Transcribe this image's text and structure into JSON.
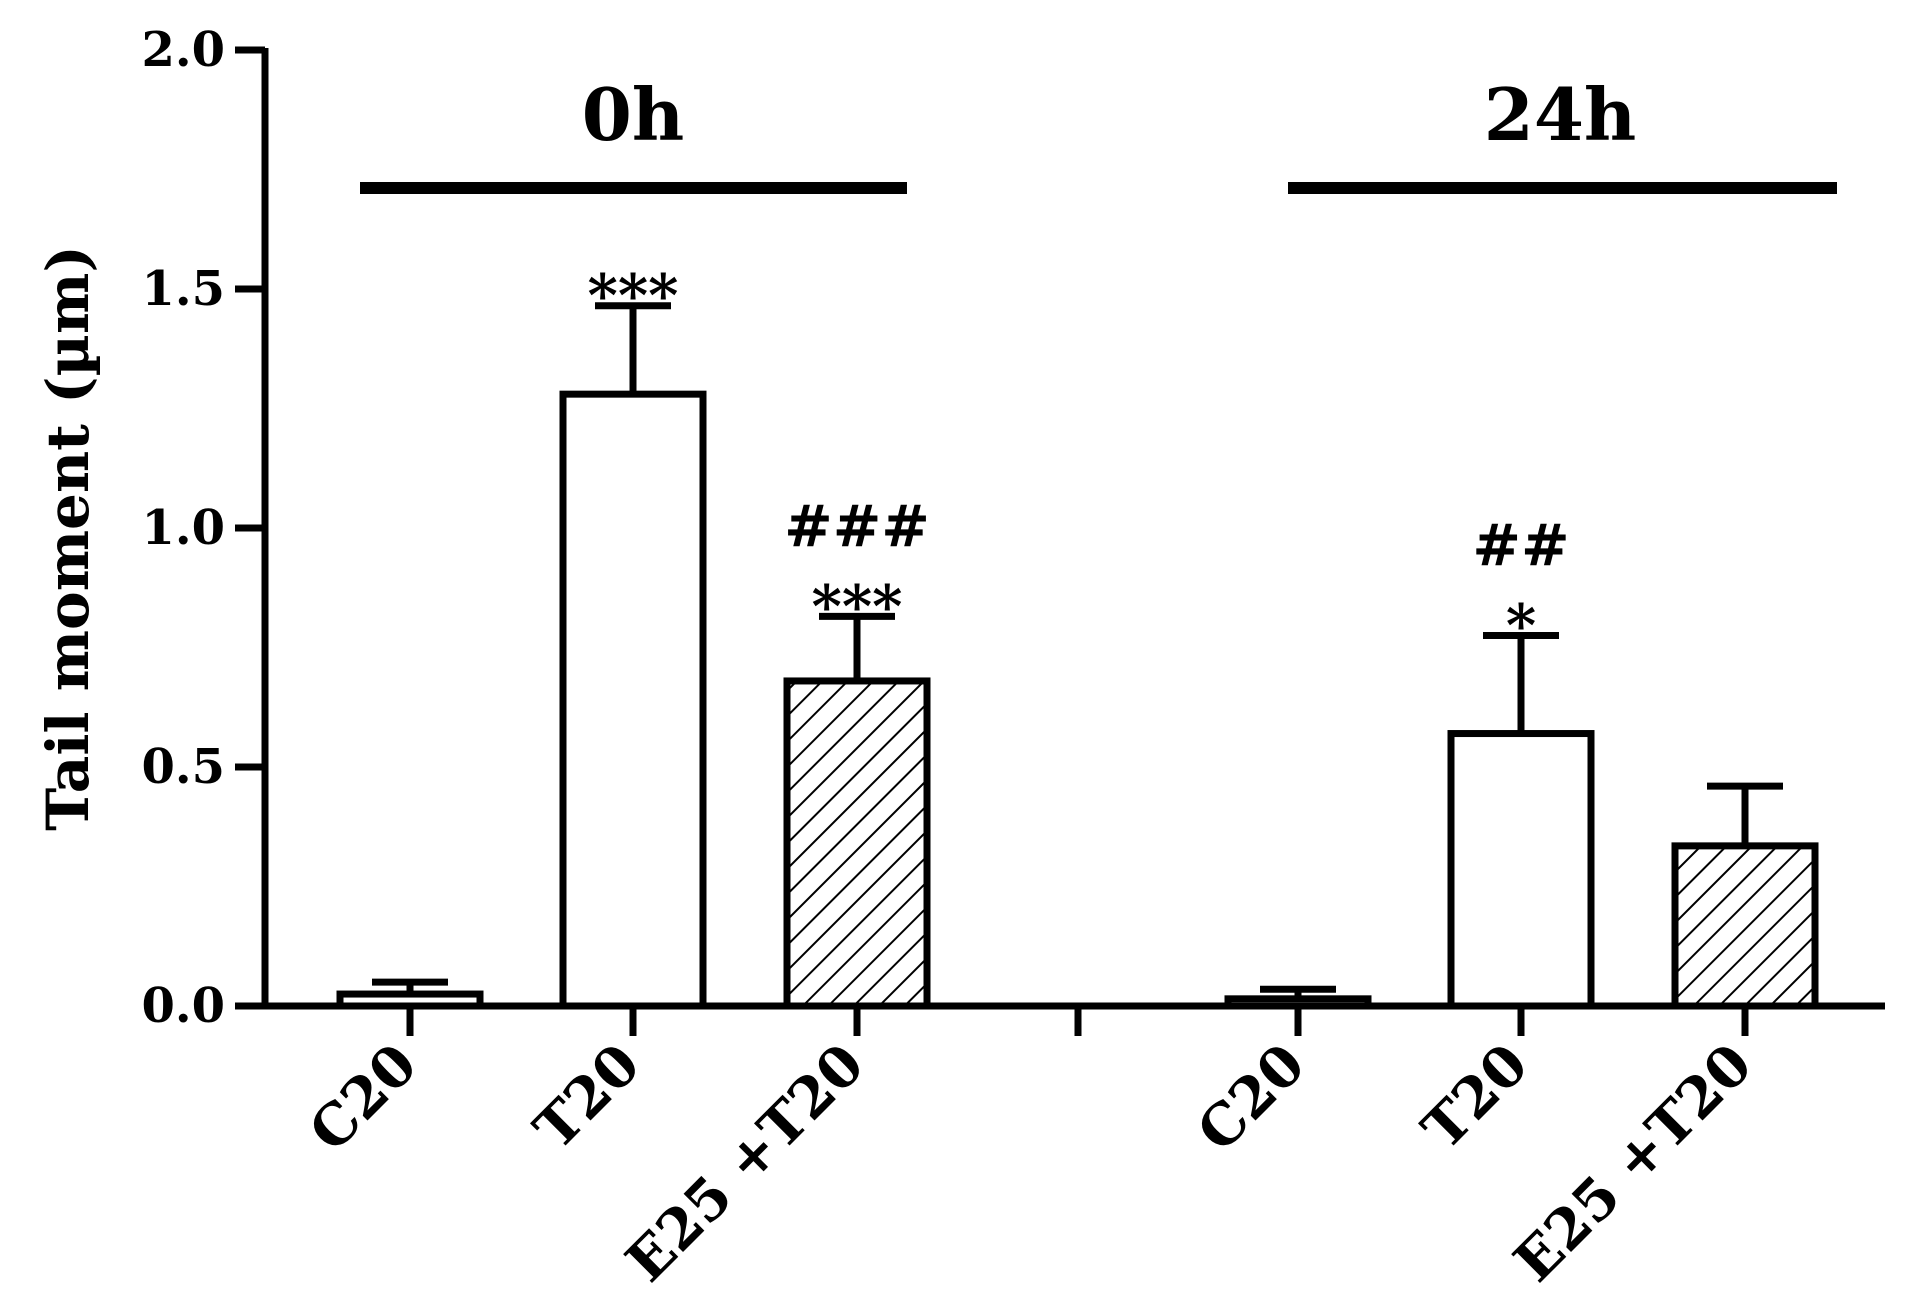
{
  "chart_data": {
    "type": "bar",
    "ylabel": "Tail moment (µm)",
    "xlabel": "",
    "ylim": [
      0,
      2.0
    ],
    "yticks": [
      0,
      0.5,
      1.0,
      1.5,
      2.0
    ],
    "ytick_labels": [
      "0.0",
      "0.5",
      "1.0",
      "1.5",
      "2.0"
    ],
    "grid": false,
    "groups": [
      {
        "label": "0h",
        "bars": [
          {
            "category": "C20",
            "value": 0.025,
            "error": 0.025,
            "pattern": "solid",
            "significance": ""
          },
          {
            "category": "T20",
            "value": 1.28,
            "error": 0.185,
            "pattern": "empty",
            "significance": "***"
          },
          {
            "category": "E25 +T20",
            "value": 0.68,
            "error": 0.135,
            "pattern": "hatched",
            "significance": "###\n***"
          }
        ]
      },
      {
        "label": "24h",
        "bars": [
          {
            "category": "C20",
            "value": 0.015,
            "error": 0.02,
            "pattern": "solid",
            "significance": ""
          },
          {
            "category": "T20",
            "value": 0.57,
            "error": 0.205,
            "pattern": "empty",
            "significance": "##\n*"
          },
          {
            "category": "E25 +T20",
            "value": 0.335,
            "error": 0.125,
            "pattern": "hatched",
            "significance": ""
          }
        ]
      }
    ]
  }
}
